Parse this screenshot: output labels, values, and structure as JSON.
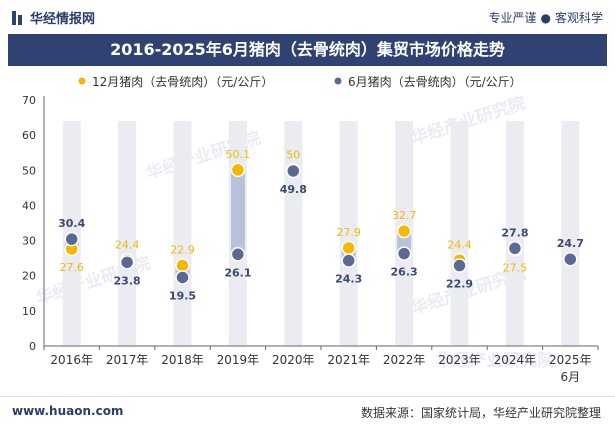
{
  "header": {
    "brand": "华经情报网",
    "tagline_left": "专业严谨",
    "tagline_right": "客观科学"
  },
  "footer": {
    "website": "www.huaon.com",
    "source": "数据来源：国家统计局，华经产业研究院整理"
  },
  "watermark": "华经产业研究院",
  "colors": {
    "dec_series": "#f5b800",
    "jun_series": "#5b6a92",
    "column_bg": "#eaecf2",
    "diff_bar": "#b9c2da",
    "title_bg": "#2f4272"
  },
  "chart_data": {
    "type": "scatter",
    "title": "2016-2025年6月猪肉（去骨统肉）集贸市场价格走势",
    "categories": [
      "2016年",
      "2017年",
      "2018年",
      "2019年",
      "2020年",
      "2021年",
      "2022年",
      "2023年",
      "2024年",
      "2025年"
    ],
    "category_sublabels": [
      "",
      "",
      "",
      "",
      "",
      "",
      "",
      "",
      "",
      "6月"
    ],
    "ylim": [
      0,
      70
    ],
    "yticks": [
      0,
      10,
      20,
      30,
      40,
      50,
      60,
      70
    ],
    "legend_position": "top",
    "series": [
      {
        "name": "12月猪肉（去骨统肉）（元/公斤）",
        "values": [
          27.6,
          24.4,
          22.9,
          50.1,
          50,
          27.9,
          32.7,
          24.4,
          27.5,
          null
        ],
        "labels": [
          "27.6",
          "24.4",
          "22.9",
          "50.1",
          "50",
          "27.9",
          "32.7",
          "24.4",
          "27.5",
          ""
        ]
      },
      {
        "name": "6月猪肉（去骨统肉）（元/公斤）",
        "values": [
          30.4,
          23.8,
          19.5,
          26.1,
          49.8,
          24.3,
          26.3,
          22.9,
          27.8,
          24.7
        ],
        "labels": [
          "30.4",
          "23.8",
          "19.5",
          "26.1",
          "49.8",
          "24.3",
          "26.3",
          "22.9",
          "27.8",
          "24.7"
        ]
      }
    ]
  }
}
